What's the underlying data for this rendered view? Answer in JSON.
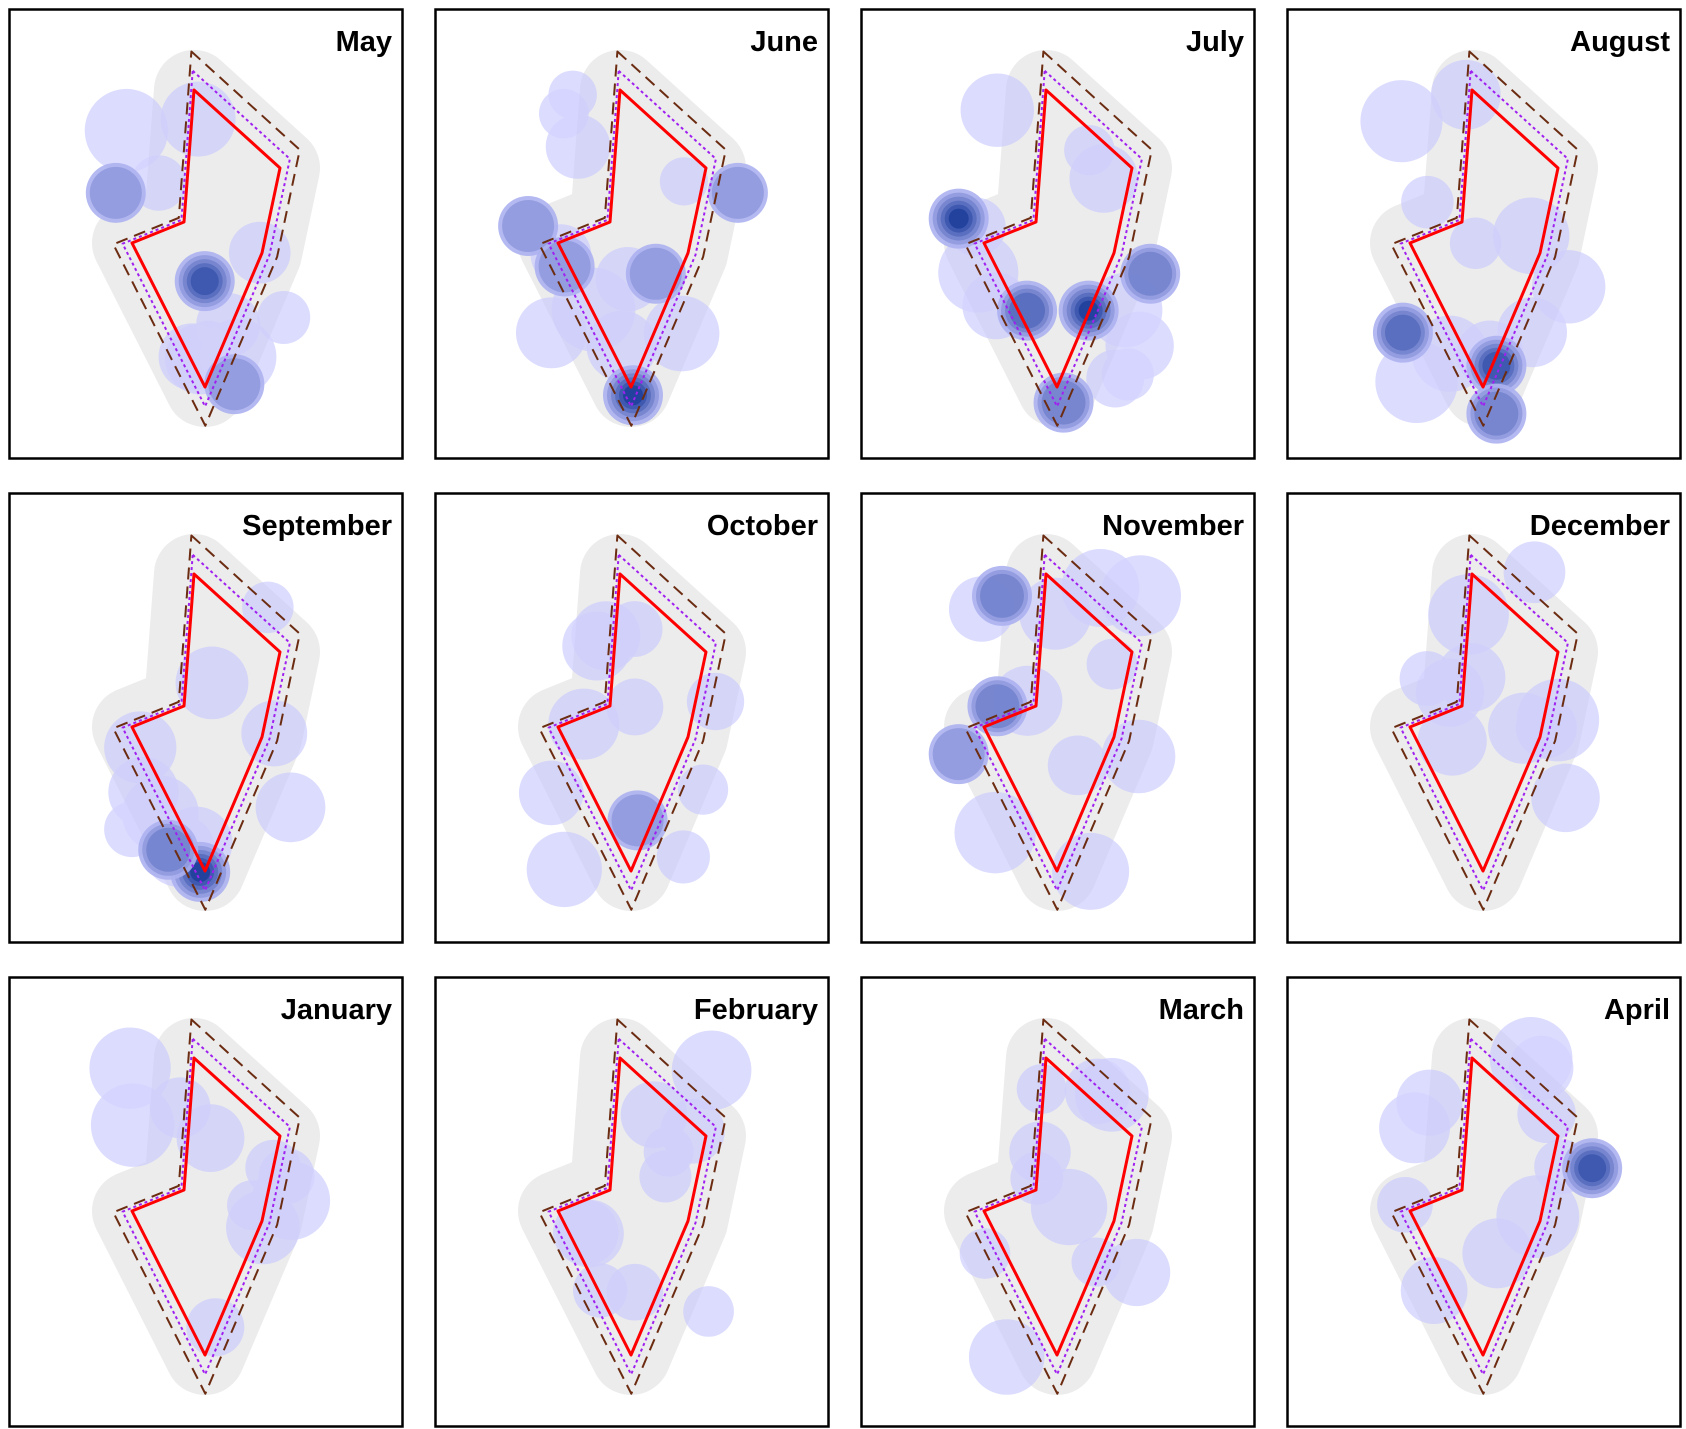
{
  "chart_data": {
    "type": "heatmap",
    "grid": {
      "columns": 4,
      "rows": 3
    },
    "boundaries": [
      "solid",
      "dotted",
      "dashed"
    ],
    "colors": {
      "density": "#c8c8ff",
      "density_high": "#1f3f9c",
      "inner_boundary": "#ff0000",
      "middle_boundary": "#a020f0",
      "outer_boundary": "#6b2c12",
      "buffer_fill": "#ececec",
      "frame": "#000000"
    },
    "panels": [
      {
        "month": "May",
        "hotspots": [
          {
            "x": 0.49,
            "y": 0.62,
            "level": 5
          },
          {
            "x": 0.1,
            "y": 0.38,
            "level": 2
          },
          {
            "x": 0.62,
            "y": 0.9,
            "level": 2
          }
        ]
      },
      {
        "month": "June",
        "hotspots": [
          {
            "x": 0.5,
            "y": 0.93,
            "level": 6
          },
          {
            "x": 0.6,
            "y": 0.6,
            "level": 2
          },
          {
            "x": 0.96,
            "y": 0.38,
            "level": 2
          },
          {
            "x": 0.2,
            "y": 0.58,
            "level": 2
          },
          {
            "x": 0.04,
            "y": 0.47,
            "level": 2
          }
        ]
      },
      {
        "month": "July",
        "hotspots": [
          {
            "x": 0.06,
            "y": 0.45,
            "level": 6
          },
          {
            "x": 0.63,
            "y": 0.7,
            "level": 6
          },
          {
            "x": 0.36,
            "y": 0.7,
            "level": 4
          },
          {
            "x": 0.52,
            "y": 0.95,
            "level": 3
          },
          {
            "x": 0.9,
            "y": 0.6,
            "level": 3
          }
        ]
      },
      {
        "month": "August",
        "hotspots": [
          {
            "x": 0.55,
            "y": 0.85,
            "level": 5
          },
          {
            "x": 0.14,
            "y": 0.76,
            "level": 4
          },
          {
            "x": 0.55,
            "y": 0.98,
            "level": 3
          }
        ]
      },
      {
        "month": "September",
        "hotspots": [
          {
            "x": 0.47,
            "y": 0.91,
            "level": 6
          },
          {
            "x": 0.33,
            "y": 0.85,
            "level": 3
          }
        ]
      },
      {
        "month": "October",
        "hotspots": [
          {
            "x": 0.52,
            "y": 0.77,
            "level": 2
          }
        ]
      },
      {
        "month": "November",
        "hotspots": [
          {
            "x": 0.23,
            "y": 0.46,
            "level": 3
          },
          {
            "x": 0.25,
            "y": 0.16,
            "level": 3
          },
          {
            "x": 0.06,
            "y": 0.59,
            "level": 2
          }
        ]
      },
      {
        "month": "December",
        "hotspots": []
      },
      {
        "month": "January",
        "hotspots": []
      },
      {
        "month": "February",
        "hotspots": []
      },
      {
        "month": "March",
        "hotspots": []
      },
      {
        "month": "April",
        "hotspots": [
          {
            "x": 0.97,
            "y": 0.4,
            "level": 5
          }
        ]
      }
    ]
  }
}
